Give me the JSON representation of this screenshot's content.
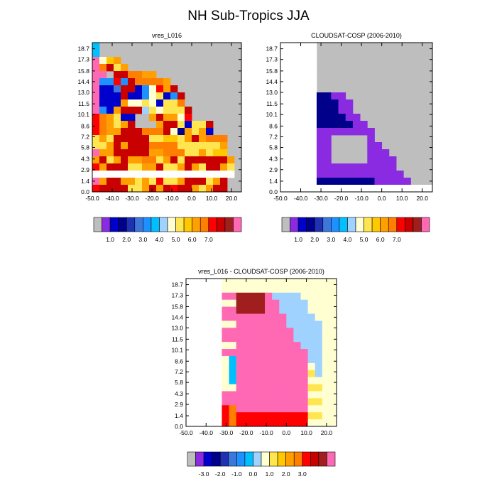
{
  "figure_title": "NH Sub-Tropics JJA",
  "chart_data": [
    {
      "type": "heatmap",
      "title": "vres_L016",
      "x_ticks": [
        "-50.0",
        "-40.0",
        "-30.0",
        "-20.0",
        "-10.0",
        "0.0",
        "10.0",
        "20.0"
      ],
      "y_ticks": [
        "0.0",
        "1.4",
        "2.9",
        "4.3",
        "5.8",
        "7.2",
        "8.6",
        "10.1",
        "11.5",
        "13.0",
        "14.4",
        "15.8",
        "17.3",
        "18.7"
      ],
      "colorbar_ticks": [
        "1.0",
        "2.0",
        "3.0",
        "4.0",
        "5.0",
        "6.0",
        "7.0"
      ],
      "grid": [
        "xgggggggggggggggggggg",
        "xgggggggggggggggggggg",
        "p89cgggggggggggggggg",
        "pabdcggggggggggggggg",
        "ppgbbaaccgggggggggggg",
        "pjjqjbaaaacgggggggggg",
        "p77nbb7j4qcbggggggggg",
        "p777b77j4d7jbgggggggg",
        "p777c88d47ddaggggggg",
        "pj7cbbb6d8dddbggggggg",
        "qacd77ggcbcc8qgggggg",
        "qacdcbgggcbbd7ddbggggg",
        "qaccbbbaaab4ecdc7gggg",
        "dcdbbbbbdd99dcbcaaagg",
        "ddcbcbbbaaaaddddddcgg",
        "pccbbbbbccaaaddcd99gg",
        "cbdcbccaadcbdbbbbbbcg",
        "qcbbbddccbddcbcdbbcdg",
        "wwwwwwwwwwwwwwwwwwwwg",
        "pcbbccdcdqddcbbbdcbgg",
        "qbbbbddcbcbqbbcdcbbgg"
      ],
      "xlim": [
        -50,
        25
      ],
      "ylim": [
        0,
        19.5
      ]
    },
    {
      "type": "heatmap",
      "title": "CLOUDSAT-COSP (2006-2010)",
      "x_ticks": [
        "-50.0",
        "-40.0",
        "-30.0",
        "-20.0",
        "-10.0",
        "0.0",
        "10.0",
        "20.0"
      ],
      "y_ticks": [
        "0.0",
        "1.4",
        "2.9",
        "4.3",
        "5.8",
        "7.2",
        "8.6",
        "10.1",
        "11.5",
        "13.0",
        "14.4",
        "15.8",
        "17.3",
        "18.7"
      ],
      "colorbar_ticks": [
        "1.0",
        "2.0",
        "3.0",
        "4.0",
        "5.0",
        "6.0",
        "7.0"
      ],
      "xlim": [
        -50,
        25
      ],
      "ylim": [
        0,
        19.5
      ]
    },
    {
      "type": "heatmap",
      "title": "vres_L016 - CLOUDSAT-COSP (2006-2010)",
      "x_ticks": [
        "-50.0",
        "-40.0",
        "-30.0",
        "-20.0",
        "-10.0",
        "0.0",
        "10.0",
        "20.0"
      ],
      "y_ticks": [
        "0.0",
        "1.4",
        "2.9",
        "4.3",
        "5.8",
        "7.2",
        "8.6",
        "10.1",
        "11.5",
        "13.0",
        "14.4",
        "15.8",
        "17.3",
        "18.7"
      ],
      "colorbar_ticks": [
        "-3.0",
        "-2.0",
        "-1.0",
        "0.0",
        "1.0",
        "2.0",
        "3.0"
      ],
      "xlim": [
        -50,
        25
      ],
      "ylim": [
        0,
        19.5
      ]
    }
  ],
  "palette": {
    "missing": "#bebebe",
    "value_colors": [
      "#8a2be2",
      "#0000cd",
      "#00008b",
      "#1e32b4",
      "#3c78dc",
      "#1e90ff",
      "#00bfff",
      "#a0d2ff",
      "#ffffd2",
      "#ffe650",
      "#ffc800",
      "#ffa000",
      "#ff8000",
      "#ff0000",
      "#c80000",
      "#a01e1e",
      "#ff69b4"
    ]
  }
}
